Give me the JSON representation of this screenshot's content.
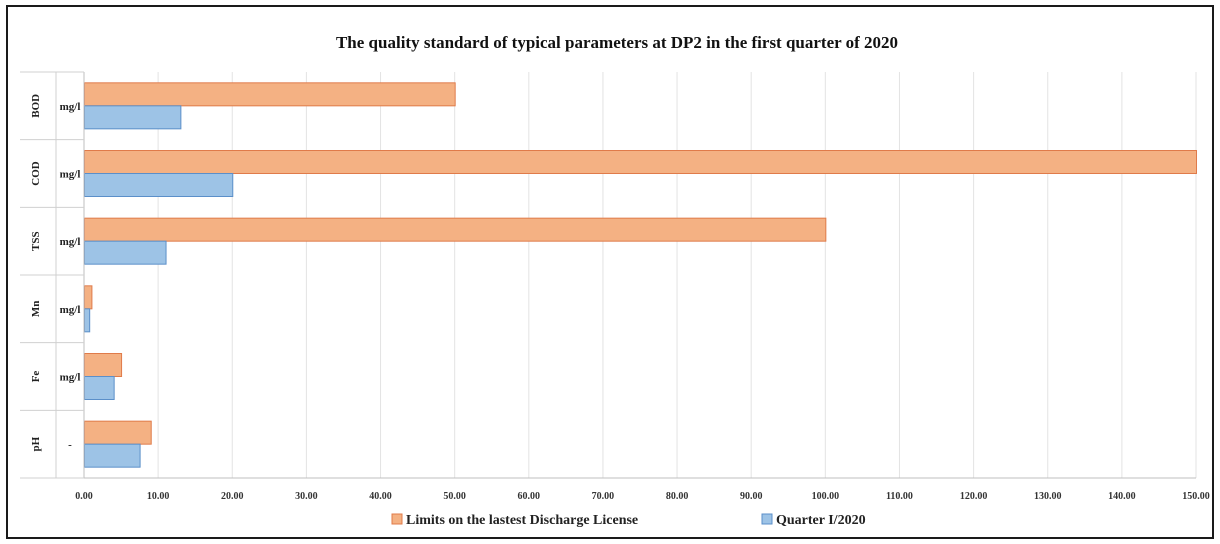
{
  "chart_data": {
    "type": "bar",
    "orientation": "horizontal",
    "title": "The quality standard of typical parameters at DP2 in the first quarter of 2020",
    "categories": [
      {
        "parameter": "BOD",
        "unit": "mg/l"
      },
      {
        "parameter": "COD",
        "unit": "mg/l"
      },
      {
        "parameter": "TSS",
        "unit": "mg/l"
      },
      {
        "parameter": "Mn",
        "unit": "mg/l"
      },
      {
        "parameter": "Fe",
        "unit": "mg/l"
      },
      {
        "parameter": "pH",
        "unit": "-"
      }
    ],
    "series": [
      {
        "name": "Limits on the lastest Discharge License",
        "color": "#F4B183",
        "stroke": "#E07B4A",
        "values": [
          50,
          150,
          100,
          1,
          5,
          9
        ]
      },
      {
        "name": "Quarter I/2020",
        "color": "#9DC3E6",
        "stroke": "#5B8FC9",
        "values": [
          13,
          20,
          11,
          0.7,
          4,
          7.5
        ]
      }
    ],
    "xlim": [
      0,
      150
    ],
    "xticks": [
      "0.00",
      "10.00",
      "20.00",
      "30.00",
      "40.00",
      "50.00",
      "60.00",
      "70.00",
      "80.00",
      "90.00",
      "100.00",
      "110.00",
      "120.00",
      "130.00",
      "140.00",
      "150.00"
    ],
    "grid": true,
    "legend_position": "bottom"
  }
}
